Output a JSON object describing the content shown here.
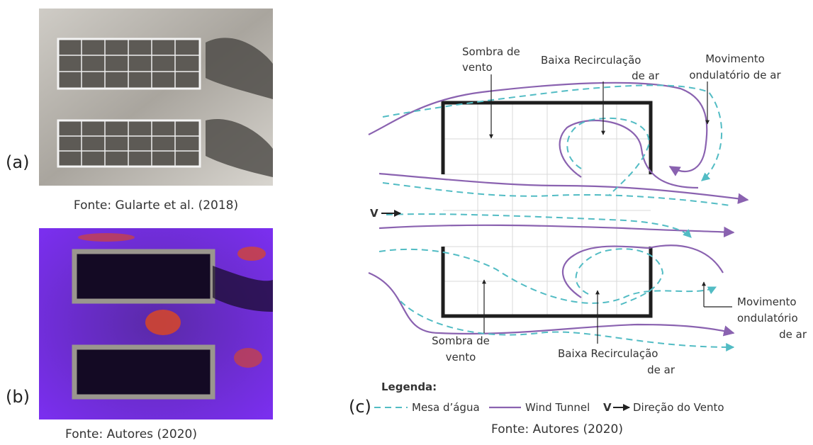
{
  "panels": [
    {
      "label": "(a)",
      "source": "Fonte: Gularte et al. (2018)"
    },
    {
      "label": "(b)",
      "source": "Fonte: Autores (2020)"
    },
    {
      "label": "(c)",
      "source": "Fonte: Autores (2020)"
    }
  ],
  "diagram": {
    "annotations": [
      {
        "lines": [
          "Sombra de",
          "vento"
        ]
      },
      {
        "lines": [
          "Baixa Recirculação",
          "de ar"
        ]
      },
      {
        "lines": [
          "Movimento",
          "ondulatório de ar"
        ]
      },
      {
        "lines": [
          "Sombra de",
          "vento"
        ]
      },
      {
        "lines": [
          "Baixa Recirculação",
          "de ar"
        ]
      },
      {
        "lines": [
          "Movimento",
          "ondulatório",
          "de ar"
        ]
      }
    ],
    "wind_label": "V",
    "legend": {
      "title": "Legenda:",
      "items": [
        "Mesa d’água",
        "Wind Tunnel",
        "Direção do Vento"
      ]
    }
  }
}
